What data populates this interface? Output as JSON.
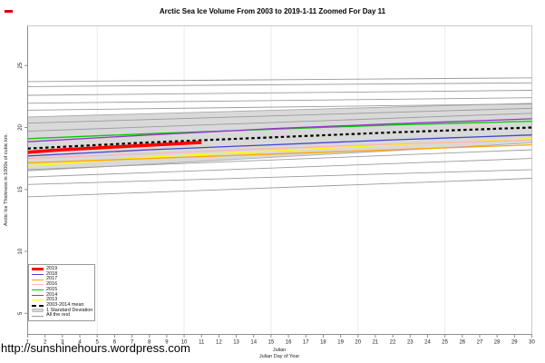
{
  "page": {
    "footer_url": "http://sunshinehours.wordpress.com"
  },
  "chart_data": {
    "type": "line",
    "title": "Arctic Sea Ice Volume From 2003 to 2019-1-11 Zoomed For Day 11",
    "xlabel_line1": "Julian",
    "xlabel_line2": "Julian Day of Year",
    "ylabel": "Arctic Ice Thickness in 1000s of cubic km.",
    "xlim": [
      1,
      30
    ],
    "ylim": [
      3.3,
      28.2
    ],
    "x_ticks": [
      1,
      2,
      3,
      4,
      5,
      6,
      7,
      8,
      9,
      10,
      11,
      12,
      13,
      14,
      15,
      16,
      17,
      18,
      19,
      20,
      21,
      22,
      23,
      24,
      25,
      26,
      27,
      28,
      29,
      30
    ],
    "y_ticks": [
      5,
      10,
      15,
      20,
      25
    ],
    "grid_x": [
      5,
      10,
      15,
      20,
      25,
      30
    ],
    "grid_color": "#ebebeb",
    "box_color": "#c9c9c9",
    "axis_color": "#8f8f8f",
    "band": {
      "name": "1 Standard Deviation",
      "color": "#d9d9d9",
      "edge_color": "#aaaaaa",
      "upper": [
        [
          1,
          20.85
        ],
        [
          30,
          21.95
        ]
      ],
      "lower": [
        [
          1,
          16.5
        ],
        [
          30,
          18.75
        ]
      ]
    },
    "background_series": {
      "name": "All the rest",
      "color": "#9b9b9b",
      "lines": [
        [
          [
            1,
            23.7
          ],
          [
            30,
            24.0
          ]
        ],
        [
          [
            1,
            23.3
          ],
          [
            30,
            23.6
          ]
        ],
        [
          [
            1,
            22.6
          ],
          [
            30,
            23.0
          ]
        ],
        [
          [
            1,
            21.95
          ],
          [
            30,
            22.4
          ]
        ],
        [
          [
            1,
            21.4
          ],
          [
            30,
            21.9
          ]
        ],
        [
          [
            1,
            20.35
          ],
          [
            30,
            21.55
          ]
        ],
        [
          [
            1,
            19.7
          ],
          [
            30,
            21.15
          ]
        ],
        [
          [
            1,
            16.6
          ],
          [
            30,
            18.2
          ]
        ],
        [
          [
            1,
            16.0
          ],
          [
            30,
            17.5
          ]
        ],
        [
          [
            1,
            15.4
          ],
          [
            30,
            16.6
          ]
        ],
        [
          [
            1,
            14.4
          ],
          [
            30,
            15.9
          ]
        ]
      ]
    },
    "series": [
      {
        "name": "2013",
        "color": "#ffff00",
        "width": 1.3,
        "points": [
          [
            1,
            16.9
          ],
          [
            8,
            17.6
          ],
          [
            15,
            18.1
          ],
          [
            22,
            18.6
          ],
          [
            30,
            19.1
          ]
        ]
      },
      {
        "name": "2017",
        "color": "#ffa500",
        "width": 1.3,
        "points": [
          [
            1,
            17.15
          ],
          [
            8,
            17.5
          ],
          [
            15,
            17.85
          ],
          [
            22,
            18.2
          ],
          [
            30,
            18.6
          ]
        ]
      },
      {
        "name": "2016",
        "color": "#ffb3b3",
        "width": 1.3,
        "points": [
          [
            1,
            17.5
          ],
          [
            8,
            17.9
          ],
          [
            15,
            18.3
          ],
          [
            22,
            18.65
          ],
          [
            30,
            19.0
          ]
        ]
      },
      {
        "name": "2018",
        "color": "#4444cc",
        "width": 1.3,
        "points": [
          [
            1,
            17.7
          ],
          [
            8,
            18.2
          ],
          [
            15,
            18.6
          ],
          [
            22,
            19.0
          ],
          [
            30,
            19.4
          ]
        ]
      },
      {
        "name": "2015",
        "color": "#00cc00",
        "width": 1.3,
        "points": [
          [
            1,
            19.1
          ],
          [
            8,
            19.5
          ],
          [
            15,
            19.85
          ],
          [
            22,
            20.2
          ],
          [
            30,
            20.5
          ]
        ]
      },
      {
        "name": "2014",
        "color": "#9933cc",
        "width": 1.3,
        "points": [
          [
            1,
            18.85
          ],
          [
            8,
            19.4
          ],
          [
            15,
            19.9
          ],
          [
            22,
            20.3
          ],
          [
            30,
            20.7
          ]
        ]
      },
      {
        "name": "2003-2014 mean",
        "color": "#000000",
        "width": 2.2,
        "dash": "3.5,3",
        "points": [
          [
            1,
            18.3
          ],
          [
            8,
            18.8
          ],
          [
            15,
            19.2
          ],
          [
            22,
            19.6
          ],
          [
            30,
            20.0
          ]
        ]
      },
      {
        "name": "2019",
        "color": "#ff0000",
        "width": 3.6,
        "points": [
          [
            1,
            18.0
          ],
          [
            3,
            18.2
          ],
          [
            5,
            18.35
          ],
          [
            7,
            18.5
          ],
          [
            9,
            18.65
          ],
          [
            11,
            18.8
          ]
        ]
      }
    ],
    "legend": {
      "position": "bottom-left",
      "items": [
        {
          "label": "2019",
          "swatch": "thick-line",
          "color": "#ff0000"
        },
        {
          "label": "2018",
          "swatch": "line",
          "color": "#4444cc"
        },
        {
          "label": "2017",
          "swatch": "line",
          "color": "#ffa500"
        },
        {
          "label": "2016",
          "swatch": "line",
          "color": "#ffb3b3"
        },
        {
          "label": "2015",
          "swatch": "line",
          "color": "#00cc00"
        },
        {
          "label": "2014",
          "swatch": "line",
          "color": "#9933cc"
        },
        {
          "label": "2013",
          "swatch": "line",
          "color": "#ffff00"
        },
        {
          "label": "2003-2014 mean",
          "swatch": "dashed-line",
          "color": "#000000"
        },
        {
          "label": "1 Standard Deviation",
          "swatch": "band",
          "color": "#d9d9d9"
        },
        {
          "label": "All the rest",
          "swatch": "line",
          "color": "#9b9b9b"
        }
      ]
    }
  }
}
